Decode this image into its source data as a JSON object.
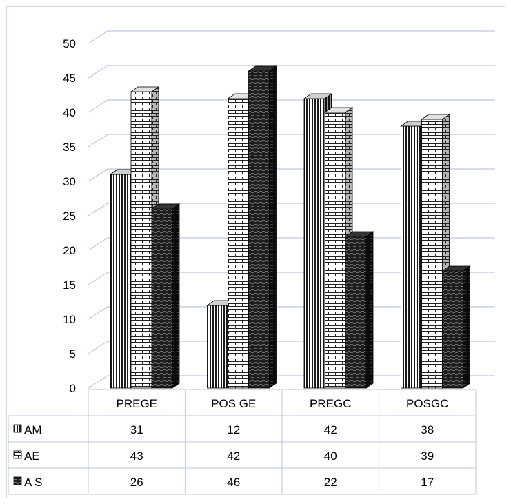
{
  "chart_data": {
    "type": "bar",
    "style": "3d-clustered-with-data-table",
    "title": "",
    "xlabel": "",
    "ylabel": "",
    "ylim": [
      0,
      50
    ],
    "ytick_step": 5,
    "yticks": [
      "0",
      "5",
      "10",
      "15",
      "20",
      "25",
      "30",
      "35",
      "40",
      "45",
      "50"
    ],
    "grid": true,
    "legend": "data-table-left",
    "categories": [
      "PREGE",
      "POS GE",
      "PREGC",
      "POSGC"
    ],
    "series": [
      {
        "name": "AM",
        "values": [
          31,
          12,
          42,
          38
        ],
        "pattern": "vertical-lines"
      },
      {
        "name": "AE",
        "values": [
          43,
          42,
          40,
          39
        ],
        "pattern": "bricks"
      },
      {
        "name": "A S",
        "values": [
          26,
          46,
          22,
          17
        ],
        "pattern": "dark-horizontal"
      }
    ],
    "colors": {
      "grid": "#aeb9dc",
      "border": "#d0d7e5",
      "bar_stroke": "#000000"
    }
  }
}
